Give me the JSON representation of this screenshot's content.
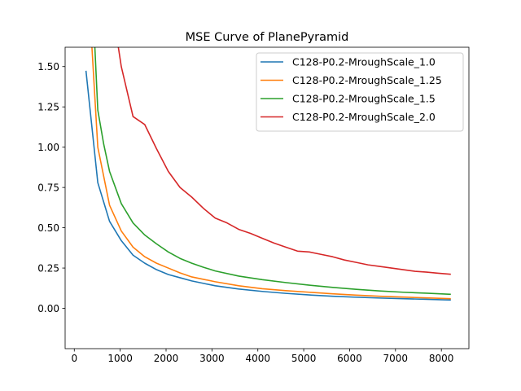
{
  "chart_data": {
    "type": "line",
    "title": "MSE Curve of PlanePyramid",
    "xlabel": "",
    "ylabel": "",
    "xlim": [
      -200,
      8600
    ],
    "ylim": [
      -0.25,
      1.62
    ],
    "xticks": [
      0,
      1000,
      2000,
      3000,
      4000,
      5000,
      6000,
      7000,
      8000
    ],
    "yticks": [
      0.0,
      0.25,
      0.5,
      0.75,
      1.0,
      1.25,
      1.5
    ],
    "ytick_labels": [
      "0.00",
      "0.25",
      "0.50",
      "0.75",
      "1.00",
      "1.25",
      "1.50"
    ],
    "grid": false,
    "legend_position": "top-right",
    "series": [
      {
        "name": "C128-P0.2-MroughScale_1.0",
        "color": "#1f77b4",
        "x": [
          256,
          512,
          768,
          1024,
          1280,
          1536,
          1792,
          2048,
          2304,
          2560,
          2816,
          3072,
          3584,
          4096,
          4608,
          5120,
          5632,
          6144,
          6656,
          7168,
          7680,
          8192
        ],
        "y": [
          1.47,
          0.78,
          0.54,
          0.42,
          0.33,
          0.28,
          0.24,
          0.21,
          0.19,
          0.17,
          0.155,
          0.14,
          0.12,
          0.105,
          0.093,
          0.083,
          0.075,
          0.069,
          0.064,
          0.06,
          0.056,
          0.052
        ]
      },
      {
        "name": "C128-P0.2-MroughScale_1.25",
        "color": "#ff7f0e",
        "x": [
          256,
          384,
          512,
          768,
          1024,
          1280,
          1536,
          1792,
          2048,
          2304,
          2560,
          2816,
          3072,
          3584,
          4096,
          4608,
          5120,
          5632,
          6144,
          6656,
          7168,
          7680,
          8192
        ],
        "y": [
          2.2,
          1.62,
          1.0,
          0.64,
          0.48,
          0.38,
          0.32,
          0.28,
          0.25,
          0.22,
          0.195,
          0.18,
          0.165,
          0.14,
          0.122,
          0.11,
          0.1,
          0.09,
          0.082,
          0.075,
          0.07,
          0.065,
          0.06
        ]
      },
      {
        "name": "C128-P0.2-MroughScale_1.5",
        "color": "#2ca02c",
        "x": [
          256,
          448,
          512,
          640,
          768,
          1024,
          1280,
          1536,
          1792,
          2048,
          2304,
          2560,
          2816,
          3072,
          3584,
          4096,
          4608,
          5120,
          5632,
          6144,
          6656,
          7168,
          7680,
          8192
        ],
        "y": [
          3.0,
          1.62,
          1.23,
          1.02,
          0.85,
          0.65,
          0.53,
          0.455,
          0.4,
          0.35,
          0.31,
          0.28,
          0.255,
          0.232,
          0.2,
          0.178,
          0.16,
          0.144,
          0.13,
          0.118,
          0.108,
          0.1,
          0.094,
          0.087
        ]
      },
      {
        "name": "C128-P0.2-MroughScale_2.0",
        "color": "#d62728",
        "x": [
          768,
          960,
          1024,
          1280,
          1536,
          1792,
          2048,
          2304,
          2560,
          2816,
          3072,
          3328,
          3584,
          3840,
          4096,
          4352,
          4608,
          4864,
          5120,
          5376,
          5632,
          5888,
          6144,
          6400,
          6656,
          6912,
          7168,
          7424,
          7680,
          7936,
          8192
        ],
        "y": [
          2.5,
          1.62,
          1.5,
          1.19,
          1.14,
          0.99,
          0.85,
          0.75,
          0.69,
          0.62,
          0.56,
          0.53,
          0.49,
          0.465,
          0.435,
          0.405,
          0.38,
          0.355,
          0.35,
          0.335,
          0.32,
          0.3,
          0.285,
          0.27,
          0.26,
          0.25,
          0.24,
          0.23,
          0.225,
          0.218,
          0.212
        ]
      }
    ]
  }
}
